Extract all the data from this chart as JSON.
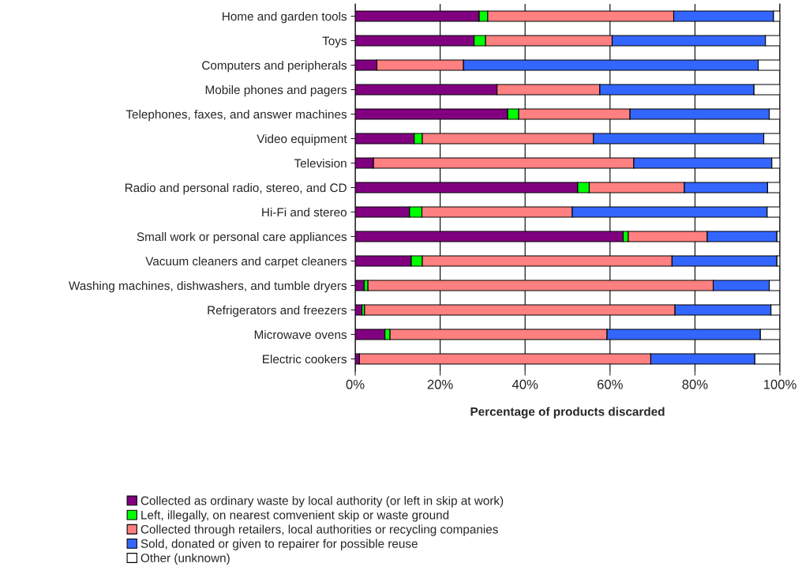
{
  "chart_data": {
    "type": "bar",
    "orientation": "horizontal",
    "stacked": true,
    "xlabel": "Percentage of products discarded",
    "categories": [
      "Home and garden tools",
      "Toys",
      "Computers and peripherals",
      "Mobile phones and pagers",
      "Telephones, faxes, and answer machines",
      "Video equipment",
      "Television",
      "Radio and personal radio, stereo, and CD",
      "Hi-Fi and stereo",
      "Small work or personal care appliances",
      "Vacuum cleaners and carpet cleaners",
      "Washing machines, dishwashers, and tumble dryers",
      "Refrigerators and freezers",
      "Microwave ovens",
      "Electric cookers"
    ],
    "series": [
      {
        "name": "Collected as ordinary waste by local authority (or left in skip at work)",
        "color": "#800080",
        "values": [
          29.2,
          28.0,
          5.1,
          33.4,
          35.9,
          13.9,
          4.3,
          52.4,
          12.8,
          63.1,
          13.2,
          2.1,
          1.6,
          7.0,
          1.0
        ]
      },
      {
        "name": "Left, illegally, on nearest comvenient skip or waste ground",
        "color": "#00ff00",
        "values": [
          2.0,
          2.7,
          null,
          null,
          2.6,
          1.9,
          null,
          2.7,
          2.9,
          1.2,
          2.6,
          0.9,
          0.6,
          1.2,
          null
        ]
      },
      {
        "name": "Collected through retailers, local authorities or recycling companies",
        "color": "#ff8080",
        "values": [
          43.8,
          29.8,
          20.4,
          24.2,
          26.2,
          40.3,
          61.3,
          22.4,
          35.4,
          18.6,
          58.8,
          81.3,
          73.1,
          51.1,
          68.6
        ]
      },
      {
        "name": "Sold, donated or given to repairer for possible reuse",
        "color": "#3366ff",
        "values": [
          23.5,
          36.1,
          69.4,
          36.3,
          32.8,
          40.1,
          32.5,
          19.6,
          45.9,
          16.4,
          24.7,
          13.2,
          22.6,
          36.1,
          24.5
        ]
      },
      {
        "name": "Other (unknown)",
        "color": "#ffffff",
        "values": [
          1.5,
          3.4,
          5.1,
          6.1,
          2.5,
          3.8,
          1.9,
          2.9,
          3.0,
          0.7,
          0.7,
          2.5,
          2.1,
          4.6,
          5.9
        ]
      }
    ],
    "xlim": [
      0,
      100
    ],
    "xticks": [
      {
        "value": 0,
        "label": "0%"
      },
      {
        "value": 20,
        "label": "20%"
      },
      {
        "value": 40,
        "label": "40%"
      },
      {
        "value": 60,
        "label": "60%"
      },
      {
        "value": 80,
        "label": "80%"
      },
      {
        "value": 100,
        "label": "100%"
      }
    ],
    "grid": "x",
    "legend": "bottom"
  }
}
